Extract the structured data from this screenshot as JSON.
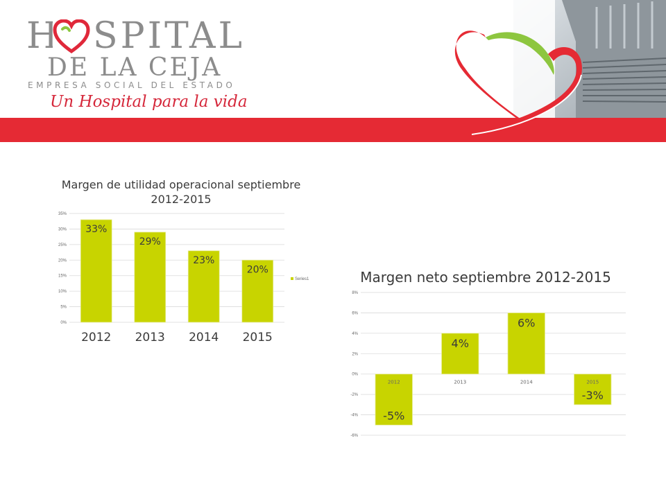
{
  "header": {
    "logo_line1": "HOSPITAL",
    "logo_line2": "DE LA CEJA",
    "logo_line3": "EMPRESA SOCIAL DEL ESTADO",
    "tagline": "Un Hospital para la vida",
    "colors": {
      "red": "#e52a34",
      "green": "#8dc63f",
      "gray": "#8c8c8c"
    },
    "icons": [
      "heart-logo-icon",
      "ribbon-heart-icon"
    ]
  },
  "chart_data": [
    {
      "type": "bar",
      "title": "Margen de utilidad operacional septiembre 2012-2015",
      "title_lines": [
        "Margen de utilidad operacional septiembre",
        "2012-2015"
      ],
      "categories": [
        "2012",
        "2013",
        "2014",
        "2015"
      ],
      "series": [
        {
          "name": "Series1",
          "values": [
            33,
            29,
            23,
            20
          ]
        }
      ],
      "data_labels": [
        "33%",
        "29%",
        "23%",
        "20%"
      ],
      "ylim": [
        0,
        35
      ],
      "yticks": [
        "0%",
        "5%",
        "10%",
        "15%",
        "20%",
        "25%",
        "30%",
        "35%"
      ],
      "grid": true,
      "legend": "right",
      "color": "#c8d400"
    },
    {
      "type": "bar",
      "title": "Margen neto septiembre 2012-2015",
      "categories": [
        "2012",
        "2013",
        "2014",
        "2015"
      ],
      "series": [
        {
          "values": [
            -5,
            4,
            6,
            -3
          ]
        }
      ],
      "data_labels": [
        "-5%",
        "4%",
        "6%",
        "-3%"
      ],
      "ylim": [
        -6,
        8
      ],
      "yticks": [
        "-6%",
        "-4%",
        "-2%",
        "0%",
        "2%",
        "4%",
        "6%",
        "8%"
      ],
      "grid": true,
      "legend": "none",
      "color": "#c8d400"
    }
  ]
}
